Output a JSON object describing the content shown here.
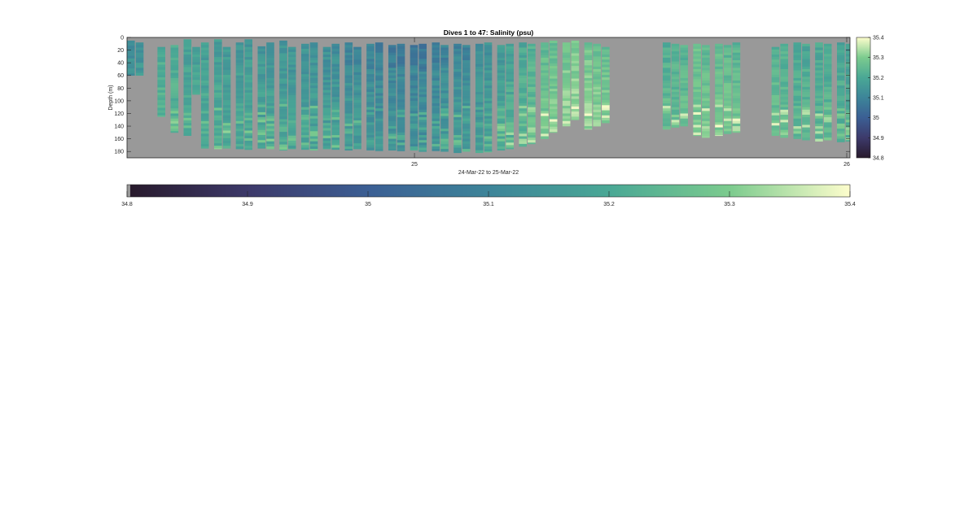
{
  "chart_data": {
    "type": "heatmap",
    "title": "Dives 1 to 47: Salinity (psu)",
    "xlabel": "24-Mar-22 to 25-Mar-22",
    "ylabel": "Depth (m)",
    "x_ticks": [
      "25",
      "26"
    ],
    "y_ticks": [
      "0",
      "20",
      "40",
      "60",
      "80",
      "100",
      "120",
      "140",
      "160",
      "180"
    ],
    "ylim": [
      0,
      190
    ],
    "y_reversed": true,
    "colorbar": {
      "label": "",
      "range": [
        34.8,
        35.4
      ],
      "ticks": [
        "34.8",
        "34.9",
        "35",
        "35.1",
        "35.2",
        "35.3",
        "35.4"
      ],
      "colormap": [
        "#281a2c",
        "#3d3a6b",
        "#3b5f94",
        "#3d8599",
        "#4aa895",
        "#7ccb8e",
        "#fdfdcc"
      ]
    },
    "missing_color": "#999999",
    "profiles": {
      "x_start_day": 24.34,
      "x_end_day": 26.0,
      "columns": [
        {
          "x": 24.34,
          "top": 5,
          "bottom": 60,
          "mean": 35.15
        },
        {
          "x": 24.36,
          "top": 8,
          "bottom": 60,
          "mean": 35.16
        },
        {
          "x": 24.41,
          "top": 15,
          "bottom": 125,
          "mean": 35.22
        },
        {
          "x": 24.44,
          "top": 12,
          "bottom": 150,
          "mean": 35.22
        },
        {
          "x": 24.47,
          "top": 3,
          "bottom": 155,
          "mean": 35.2
        },
        {
          "x": 24.49,
          "top": 15,
          "bottom": 90,
          "mean": 35.19
        },
        {
          "x": 24.51,
          "top": 8,
          "bottom": 175,
          "mean": 35.19
        },
        {
          "x": 24.54,
          "top": 3,
          "bottom": 176,
          "mean": 35.19
        },
        {
          "x": 24.56,
          "top": 15,
          "bottom": 175,
          "mean": 35.18
        },
        {
          "x": 24.59,
          "top": 8,
          "bottom": 176,
          "mean": 35.18
        },
        {
          "x": 24.61,
          "top": 3,
          "bottom": 177,
          "mean": 35.18
        },
        {
          "x": 24.64,
          "top": 14,
          "bottom": 175,
          "mean": 35.17
        },
        {
          "x": 24.66,
          "top": 8,
          "bottom": 176,
          "mean": 35.17
        },
        {
          "x": 24.69,
          "top": 5,
          "bottom": 178,
          "mean": 35.17
        },
        {
          "x": 24.71,
          "top": 15,
          "bottom": 176,
          "mean": 35.16
        },
        {
          "x": 24.74,
          "top": 10,
          "bottom": 177,
          "mean": 35.16
        },
        {
          "x": 24.76,
          "top": 8,
          "bottom": 178,
          "mean": 35.16
        },
        {
          "x": 24.79,
          "top": 15,
          "bottom": 176,
          "mean": 35.15
        },
        {
          "x": 24.81,
          "top": 10,
          "bottom": 177,
          "mean": 35.15
        },
        {
          "x": 24.84,
          "top": 8,
          "bottom": 178,
          "mean": 35.14
        },
        {
          "x": 24.86,
          "top": 15,
          "bottom": 176,
          "mean": 35.14
        },
        {
          "x": 24.89,
          "top": 10,
          "bottom": 178,
          "mean": 35.13
        },
        {
          "x": 24.91,
          "top": 8,
          "bottom": 179,
          "mean": 35.12
        },
        {
          "x": 24.94,
          "top": 12,
          "bottom": 178,
          "mean": 35.12
        },
        {
          "x": 24.96,
          "top": 10,
          "bottom": 179,
          "mean": 35.11
        },
        {
          "x": 24.99,
          "top": 12,
          "bottom": 178,
          "mean": 35.11
        },
        {
          "x": 25.01,
          "top": 10,
          "bottom": 180,
          "mean": 35.11
        },
        {
          "x": 25.04,
          "top": 8,
          "bottom": 179,
          "mean": 35.12
        },
        {
          "x": 25.06,
          "top": 12,
          "bottom": 180,
          "mean": 35.13
        },
        {
          "x": 25.09,
          "top": 10,
          "bottom": 182,
          "mean": 35.14
        },
        {
          "x": 25.11,
          "top": 12,
          "bottom": 180,
          "mean": 35.14
        },
        {
          "x": 25.14,
          "top": 10,
          "bottom": 182,
          "mean": 35.15
        },
        {
          "x": 25.16,
          "top": 8,
          "bottom": 181,
          "mean": 35.16
        },
        {
          "x": 25.19,
          "top": 12,
          "bottom": 178,
          "mean": 35.18
        },
        {
          "x": 25.21,
          "top": 10,
          "bottom": 176,
          "mean": 35.2
        },
        {
          "x": 25.24,
          "top": 8,
          "bottom": 172,
          "mean": 35.22
        },
        {
          "x": 25.26,
          "top": 10,
          "bottom": 168,
          "mean": 35.24
        },
        {
          "x": 25.29,
          "top": 8,
          "bottom": 160,
          "mean": 35.27
        },
        {
          "x": 25.31,
          "top": 5,
          "bottom": 150,
          "mean": 35.28
        },
        {
          "x": 25.34,
          "top": 8,
          "bottom": 140,
          "mean": 35.3
        },
        {
          "x": 25.36,
          "top": 5,
          "bottom": 130,
          "mean": 35.31
        },
        {
          "x": 25.39,
          "top": 8,
          "bottom": 145,
          "mean": 35.3
        },
        {
          "x": 25.41,
          "top": 10,
          "bottom": 140,
          "mean": 35.29
        },
        {
          "x": 25.43,
          "top": 15,
          "bottom": 135,
          "mean": 35.28
        },
        {
          "x": 25.57,
          "top": 8,
          "bottom": 145,
          "mean": 35.24
        },
        {
          "x": 25.59,
          "top": 10,
          "bottom": 142,
          "mean": 35.24
        },
        {
          "x": 25.61,
          "top": 12,
          "bottom": 140,
          "mean": 35.25
        },
        {
          "x": 25.64,
          "top": 10,
          "bottom": 155,
          "mean": 35.28
        },
        {
          "x": 25.66,
          "top": 12,
          "bottom": 158,
          "mean": 35.27
        },
        {
          "x": 25.69,
          "top": 10,
          "bottom": 155,
          "mean": 35.27
        },
        {
          "x": 25.71,
          "top": 12,
          "bottom": 152,
          "mean": 35.26
        },
        {
          "x": 25.73,
          "top": 8,
          "bottom": 150,
          "mean": 35.26
        },
        {
          "x": 25.82,
          "top": 15,
          "bottom": 155,
          "mean": 35.25
        },
        {
          "x": 25.84,
          "top": 10,
          "bottom": 158,
          "mean": 35.24
        },
        {
          "x": 25.87,
          "top": 8,
          "bottom": 160,
          "mean": 35.22
        },
        {
          "x": 25.89,
          "top": 10,
          "bottom": 162,
          "mean": 35.22
        },
        {
          "x": 25.92,
          "top": 8,
          "bottom": 164,
          "mean": 35.22
        },
        {
          "x": 25.94,
          "top": 10,
          "bottom": 162,
          "mean": 35.22
        },
        {
          "x": 25.97,
          "top": 8,
          "bottom": 165,
          "mean": 35.21
        },
        {
          "x": 25.99,
          "top": 10,
          "bottom": 164,
          "mean": 35.2
        }
      ]
    }
  }
}
